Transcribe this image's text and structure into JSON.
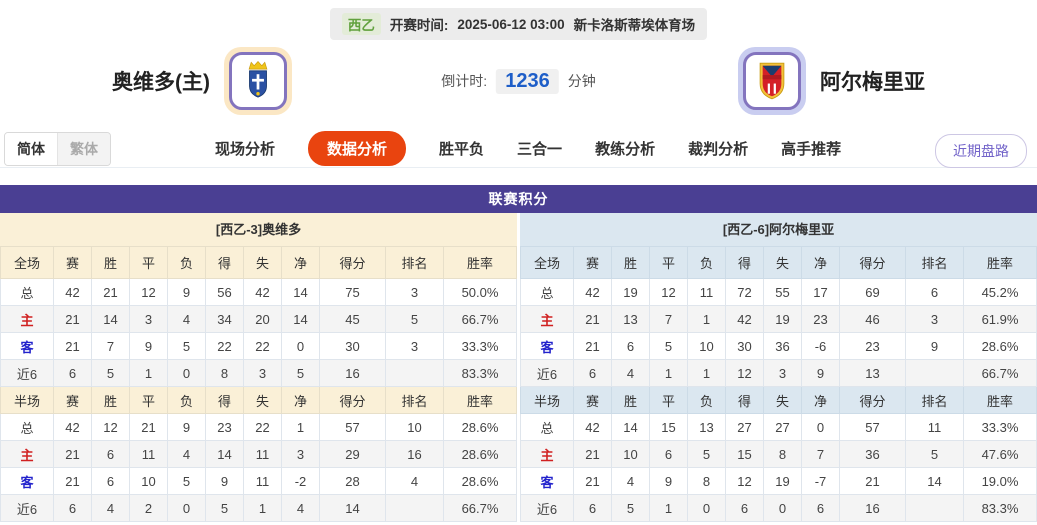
{
  "header": {
    "league": "西乙",
    "kickoff_label": "开赛时间:",
    "kickoff_time": "2025-06-12 03:00",
    "venue": "新卡洛斯蒂埃体育场",
    "home_team": "奥维多(主)",
    "away_team": "阿尔梅里亚",
    "countdown_label": "倒计时:",
    "countdown_value": "1236",
    "countdown_unit": "分钟"
  },
  "nav": {
    "lang_options": [
      {
        "label": "简体",
        "active": true
      },
      {
        "label": "繁体",
        "active": false
      }
    ],
    "tabs": [
      {
        "label": "现场分析",
        "active": false
      },
      {
        "label": "数据分析",
        "active": true
      },
      {
        "label": "胜平负",
        "active": false
      },
      {
        "label": "三合一",
        "active": false
      },
      {
        "label": "教练分析",
        "active": false
      },
      {
        "label": "裁判分析",
        "active": false
      },
      {
        "label": "高手推荐",
        "active": false
      }
    ],
    "recent_button": "近期盘路"
  },
  "table": {
    "title": "联赛积分",
    "columns": [
      "赛",
      "胜",
      "平",
      "负",
      "得",
      "失",
      "净",
      "得分",
      "排名",
      "胜率"
    ],
    "sides": [
      {
        "key": "home",
        "theme": "cream",
        "header": "[西乙-3]奥维多",
        "sections": [
          {
            "key": "full",
            "scope_label": "全场",
            "rows": [
              {
                "label": "总",
                "type": "total",
                "cells": [
                  "42",
                  "21",
                  "12",
                  "9",
                  "56",
                  "42",
                  "14",
                  "75",
                  "3",
                  "50.0%"
                ]
              },
              {
                "label": "主",
                "type": "home",
                "cells": [
                  "21",
                  "14",
                  "3",
                  "4",
                  "34",
                  "20",
                  "14",
                  "45",
                  "5",
                  "66.7%"
                ]
              },
              {
                "label": "客",
                "type": "away",
                "cells": [
                  "21",
                  "7",
                  "9",
                  "5",
                  "22",
                  "22",
                  "0",
                  "30",
                  "3",
                  "33.3%"
                ]
              },
              {
                "label": "近6",
                "type": "near",
                "cells": [
                  "6",
                  "5",
                  "1",
                  "0",
                  "8",
                  "3",
                  "5",
                  "16",
                  "",
                  "83.3%"
                ]
              }
            ]
          },
          {
            "key": "half",
            "scope_label": "半场",
            "rows": [
              {
                "label": "总",
                "type": "total",
                "cells": [
                  "42",
                  "12",
                  "21",
                  "9",
                  "23",
                  "22",
                  "1",
                  "57",
                  "10",
                  "28.6%"
                ]
              },
              {
                "label": "主",
                "type": "home",
                "cells": [
                  "21",
                  "6",
                  "11",
                  "4",
                  "14",
                  "11",
                  "3",
                  "29",
                  "16",
                  "28.6%"
                ]
              },
              {
                "label": "客",
                "type": "away",
                "cells": [
                  "21",
                  "6",
                  "10",
                  "5",
                  "9",
                  "11",
                  "-2",
                  "28",
                  "4",
                  "28.6%"
                ]
              },
              {
                "label": "近6",
                "type": "near",
                "cells": [
                  "6",
                  "4",
                  "2",
                  "0",
                  "5",
                  "1",
                  "4",
                  "14",
                  "",
                  "66.7%"
                ]
              }
            ]
          }
        ]
      },
      {
        "key": "away",
        "theme": "blue",
        "header": "[西乙-6]阿尔梅里亚",
        "sections": [
          {
            "key": "full",
            "scope_label": "全场",
            "rows": [
              {
                "label": "总",
                "type": "total",
                "cells": [
                  "42",
                  "19",
                  "12",
                  "11",
                  "72",
                  "55",
                  "17",
                  "69",
                  "6",
                  "45.2%"
                ]
              },
              {
                "label": "主",
                "type": "home",
                "cells": [
                  "21",
                  "13",
                  "7",
                  "1",
                  "42",
                  "19",
                  "23",
                  "46",
                  "3",
                  "61.9%"
                ]
              },
              {
                "label": "客",
                "type": "away",
                "cells": [
                  "21",
                  "6",
                  "5",
                  "10",
                  "30",
                  "36",
                  "-6",
                  "23",
                  "9",
                  "28.6%"
                ]
              },
              {
                "label": "近6",
                "type": "near",
                "cells": [
                  "6",
                  "4",
                  "1",
                  "1",
                  "12",
                  "3",
                  "9",
                  "13",
                  "",
                  "66.7%"
                ]
              }
            ]
          },
          {
            "key": "half",
            "scope_label": "半场",
            "rows": [
              {
                "label": "总",
                "type": "total",
                "cells": [
                  "42",
                  "14",
                  "15",
                  "13",
                  "27",
                  "27",
                  "0",
                  "57",
                  "11",
                  "33.3%"
                ]
              },
              {
                "label": "主",
                "type": "home",
                "cells": [
                  "21",
                  "10",
                  "6",
                  "5",
                  "15",
                  "8",
                  "7",
                  "36",
                  "5",
                  "47.6%"
                ]
              },
              {
                "label": "客",
                "type": "away",
                "cells": [
                  "21",
                  "4",
                  "9",
                  "8",
                  "12",
                  "19",
                  "-7",
                  "21",
                  "14",
                  "19.0%"
                ]
              },
              {
                "label": "近6",
                "type": "near",
                "cells": [
                  "6",
                  "5",
                  "1",
                  "0",
                  "6",
                  "0",
                  "6",
                  "16",
                  "",
                  "83.3%"
                ]
              }
            ]
          }
        ]
      }
    ]
  },
  "colors": {
    "accent_purple": "#4a3f93",
    "active_tab_red": "#e9440f",
    "home_band_cream": "#faf0d7",
    "away_band_blue": "#dbe7f0",
    "home_label_red": "#d02020",
    "away_label_blue": "#2222cc",
    "countdown_blue": "#1e5ec8",
    "league_green": "#61a13e",
    "recent_button_purple": "#7263c9"
  }
}
